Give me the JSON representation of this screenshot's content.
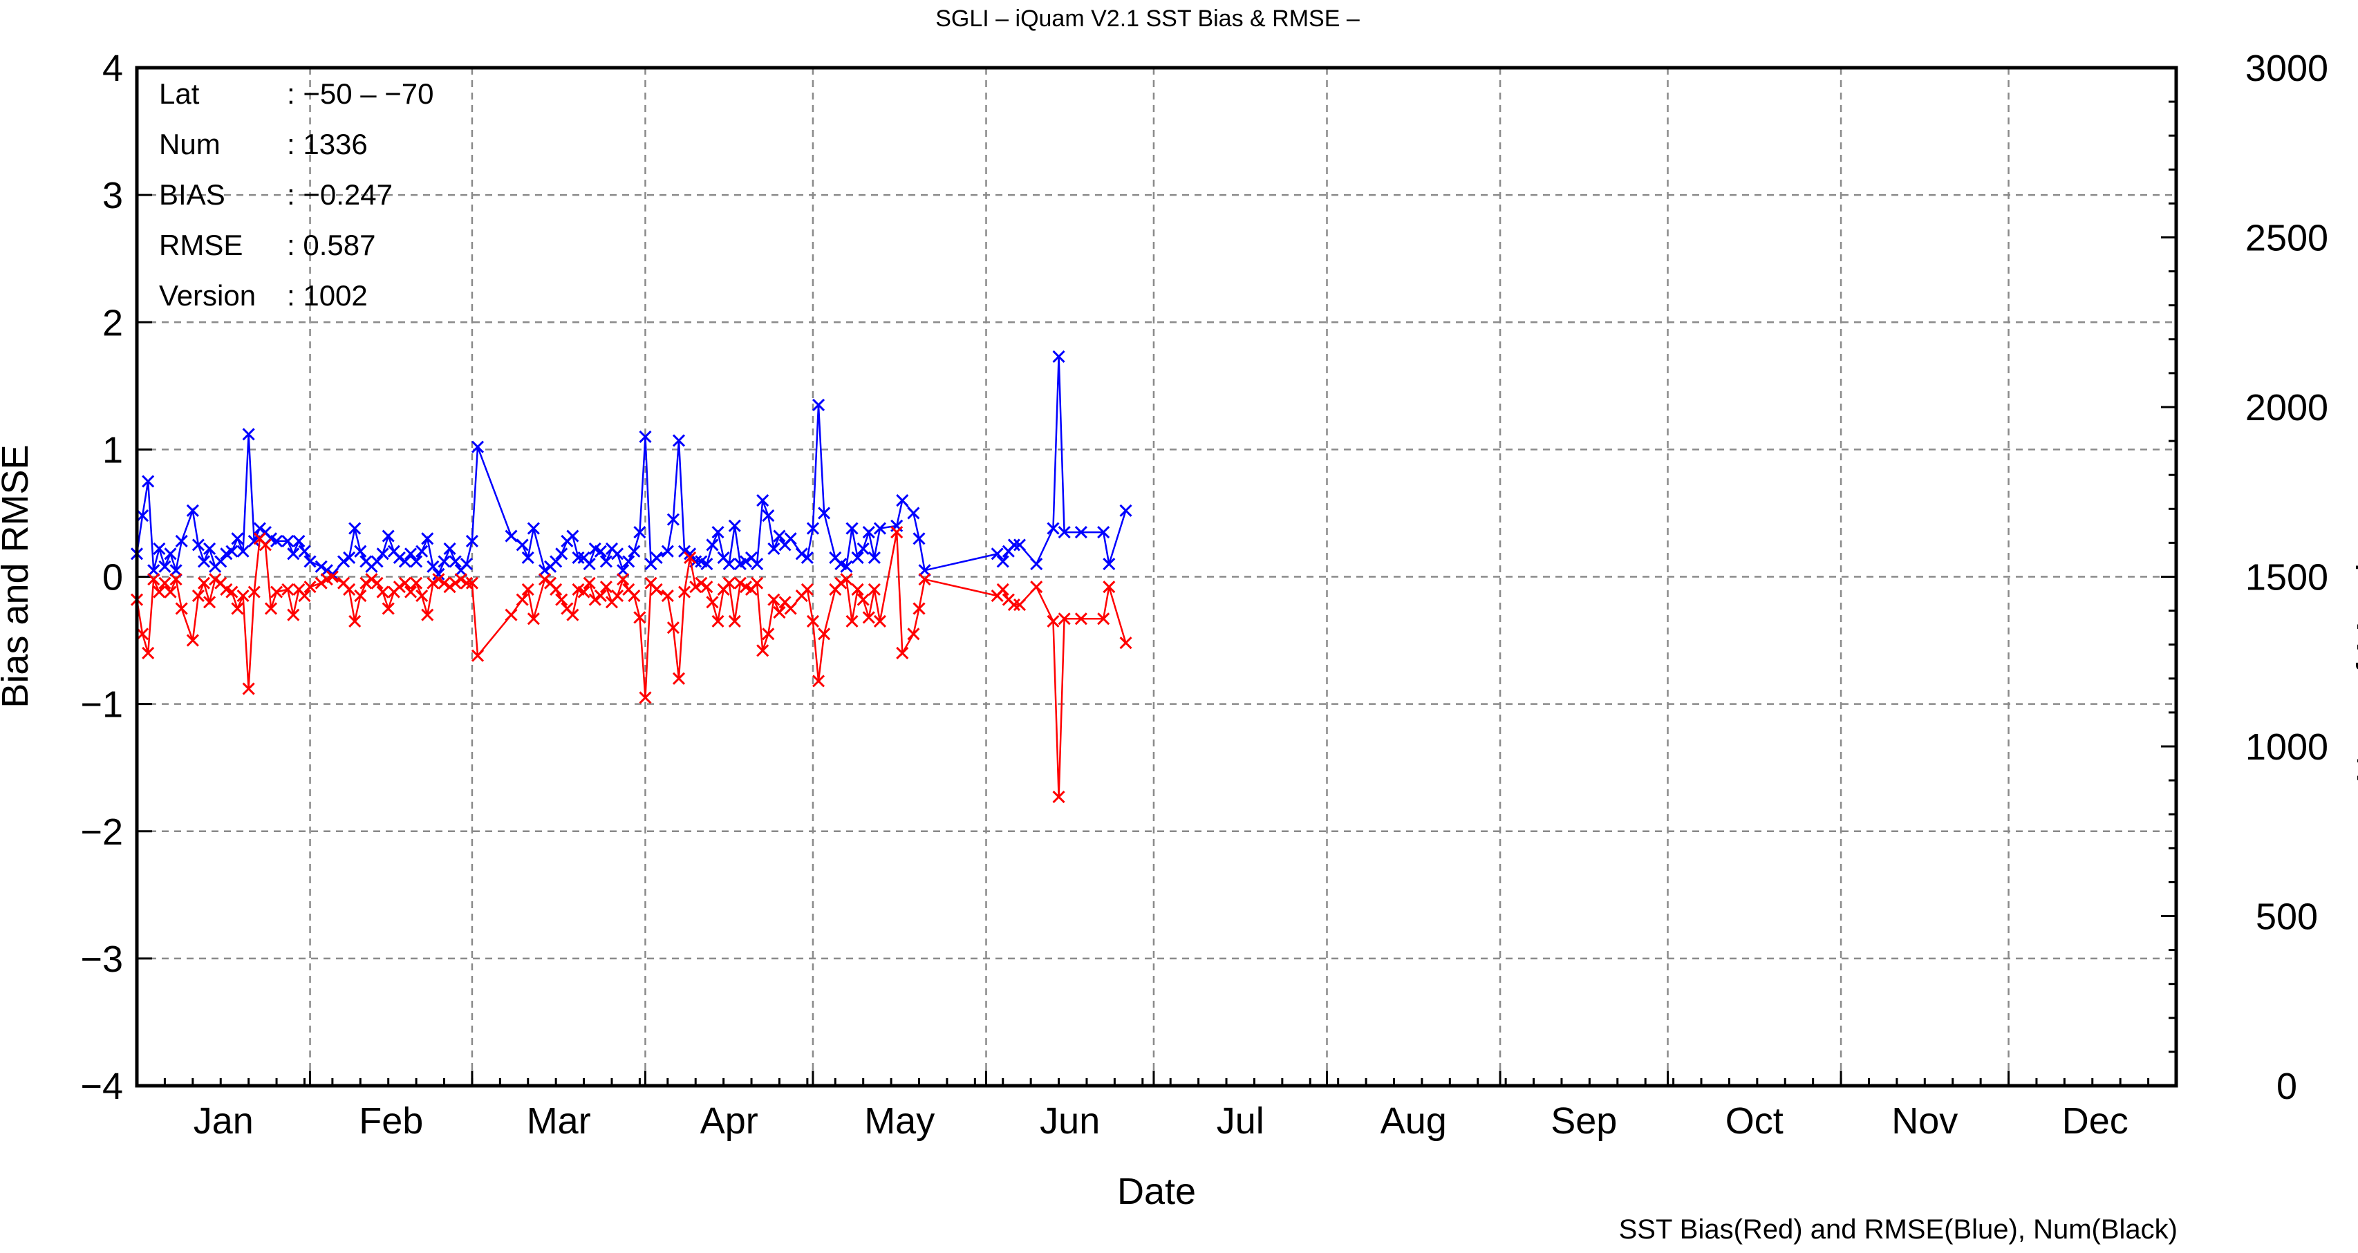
{
  "chart_data": {
    "type": "line",
    "title": "SGLI – iQuam V2.1 SST Bias & RMSE  –",
    "xlabel": "Date",
    "ylabel": "Bias and RMSE",
    "y2label": "Num of Match–up",
    "footer": "SST Bias(Red) and RMSE(Blue), Num(Black)",
    "ylim": [
      -4,
      4
    ],
    "y2lim": [
      0,
      3000
    ],
    "xlim": [
      1,
      366
    ],
    "grid": true,
    "y_ticks": [
      "4",
      "3",
      "2",
      "1",
      "0",
      "−1",
      "−2",
      "−3",
      "−4"
    ],
    "y2_ticks": [
      "3000",
      "2500",
      "2000",
      "1500",
      "1000",
      "500",
      "0"
    ],
    "months": [
      "Jan",
      "Feb",
      "Mar",
      "Apr",
      "May",
      "Jun",
      "Jul",
      "Aug",
      "Sep",
      "Oct",
      "Nov",
      "Dec"
    ],
    "info": [
      {
        "label": "Lat",
        "value": ": −50 – −70"
      },
      {
        "label": "Num",
        "value": ": 1336"
      },
      {
        "label": "BIAS",
        "value": ": −0.247"
      },
      {
        "label": "RMSE",
        "value": ": 0.587"
      },
      {
        "label": "Version",
        "value": ": 1002"
      }
    ],
    "colors": {
      "bias": "#ff0000",
      "rmse": "#0000ff",
      "num": "#000000"
    },
    "series": [
      {
        "name": "RMSE",
        "color": "#0000ff",
        "points": [
          [
            1,
            0.18
          ],
          [
            2,
            0.48
          ],
          [
            3,
            0.75
          ],
          [
            4,
            0.05
          ],
          [
            5,
            0.22
          ],
          [
            6,
            0.08
          ],
          [
            7,
            0.18
          ],
          [
            8,
            0.05
          ],
          [
            9,
            0.28
          ],
          [
            11,
            0.52
          ],
          [
            12,
            0.25
          ],
          [
            13,
            0.12
          ],
          [
            14,
            0.22
          ],
          [
            15,
            0.08
          ],
          [
            16,
            0.12
          ],
          [
            17,
            0.18
          ],
          [
            18,
            0.2
          ],
          [
            19,
            0.3
          ],
          [
            20,
            0.2
          ],
          [
            21,
            1.12
          ],
          [
            22,
            0.28
          ],
          [
            23,
            0.38
          ],
          [
            24,
            0.35
          ],
          [
            25,
            0.3
          ],
          [
            26,
            0.28
          ],
          [
            28,
            0.28
          ],
          [
            29,
            0.18
          ],
          [
            30,
            0.28
          ],
          [
            31,
            0.2
          ],
          [
            32,
            0.12
          ],
          [
            34,
            0.08
          ],
          [
            35,
            0.05
          ],
          [
            36,
            0.02
          ],
          [
            38,
            0.12
          ],
          [
            39,
            0.15
          ],
          [
            40,
            0.38
          ],
          [
            41,
            0.2
          ],
          [
            42,
            0.12
          ],
          [
            43,
            0.08
          ],
          [
            44,
            0.12
          ],
          [
            45,
            0.18
          ],
          [
            46,
            0.32
          ],
          [
            47,
            0.2
          ],
          [
            48,
            0.15
          ],
          [
            49,
            0.12
          ],
          [
            50,
            0.18
          ],
          [
            51,
            0.12
          ],
          [
            52,
            0.2
          ],
          [
            53,
            0.3
          ],
          [
            54,
            0.08
          ],
          [
            55,
            0.02
          ],
          [
            56,
            0.12
          ],
          [
            57,
            0.22
          ],
          [
            58,
            0.12
          ],
          [
            59,
            0.05
          ],
          [
            60,
            0.1
          ],
          [
            61,
            0.28
          ],
          [
            62,
            1.02
          ],
          [
            68,
            0.32
          ],
          [
            70,
            0.25
          ],
          [
            71,
            0.15
          ],
          [
            72,
            0.38
          ],
          [
            74,
            0.05
          ],
          [
            75,
            0.08
          ],
          [
            76,
            0.12
          ],
          [
            77,
            0.18
          ],
          [
            78,
            0.28
          ],
          [
            79,
            0.32
          ],
          [
            80,
            0.15
          ],
          [
            81,
            0.15
          ],
          [
            82,
            0.1
          ],
          [
            83,
            0.22
          ],
          [
            84,
            0.2
          ],
          [
            85,
            0.12
          ],
          [
            86,
            0.22
          ],
          [
            87,
            0.18
          ],
          [
            88,
            0.05
          ],
          [
            89,
            0.12
          ],
          [
            90,
            0.2
          ],
          [
            91,
            0.35
          ],
          [
            92,
            1.1
          ],
          [
            93,
            0.1
          ],
          [
            94,
            0.15
          ],
          [
            96,
            0.2
          ],
          [
            97,
            0.45
          ],
          [
            98,
            1.07
          ],
          [
            99,
            0.2
          ],
          [
            100,
            0.18
          ],
          [
            101,
            0.12
          ],
          [
            102,
            0.12
          ],
          [
            103,
            0.1
          ],
          [
            104,
            0.25
          ],
          [
            105,
            0.35
          ],
          [
            106,
            0.15
          ],
          [
            107,
            0.1
          ],
          [
            108,
            0.4
          ],
          [
            109,
            0.1
          ],
          [
            110,
            0.12
          ],
          [
            111,
            0.15
          ],
          [
            112,
            0.1
          ],
          [
            113,
            0.6
          ],
          [
            114,
            0.48
          ],
          [
            115,
            0.22
          ],
          [
            116,
            0.32
          ],
          [
            117,
            0.25
          ],
          [
            118,
            0.3
          ],
          [
            120,
            0.18
          ],
          [
            121,
            0.15
          ],
          [
            122,
            0.38
          ],
          [
            123,
            1.35
          ],
          [
            124,
            0.5
          ],
          [
            126,
            0.15
          ],
          [
            127,
            0.1
          ],
          [
            128,
            0.08
          ],
          [
            129,
            0.38
          ],
          [
            130,
            0.15
          ],
          [
            131,
            0.22
          ],
          [
            132,
            0.35
          ],
          [
            133,
            0.15
          ],
          [
            134,
            0.38
          ],
          [
            137,
            0.4
          ],
          [
            138,
            0.6
          ],
          [
            140,
            0.5
          ],
          [
            141,
            0.3
          ],
          [
            142,
            0.05
          ],
          [
            155,
            0.18
          ],
          [
            156,
            0.12
          ],
          [
            157,
            0.2
          ],
          [
            158,
            0.25
          ],
          [
            159,
            0.25
          ],
          [
            162,
            0.1
          ],
          [
            165,
            0.38
          ],
          [
            166,
            1.73
          ],
          [
            167,
            0.35
          ],
          [
            170,
            0.35
          ],
          [
            174,
            0.35
          ],
          [
            175,
            0.1
          ],
          [
            178,
            0.52
          ]
        ]
      },
      {
        "name": "Bias",
        "color": "#ff0000",
        "points": [
          [
            1,
            -0.18
          ],
          [
            2,
            -0.45
          ],
          [
            3,
            -0.6
          ],
          [
            4,
            -0.02
          ],
          [
            5,
            -0.12
          ],
          [
            6,
            -0.05
          ],
          [
            7,
            -0.12
          ],
          [
            8,
            -0.02
          ],
          [
            9,
            -0.25
          ],
          [
            11,
            -0.5
          ],
          [
            12,
            -0.15
          ],
          [
            13,
            -0.05
          ],
          [
            14,
            -0.2
          ],
          [
            15,
            -0.02
          ],
          [
            16,
            -0.05
          ],
          [
            17,
            -0.1
          ],
          [
            18,
            -0.12
          ],
          [
            19,
            -0.25
          ],
          [
            20,
            -0.15
          ],
          [
            21,
            -0.88
          ],
          [
            22,
            -0.12
          ],
          [
            23,
            0.3
          ],
          [
            24,
            0.25
          ],
          [
            25,
            -0.25
          ],
          [
            26,
            -0.12
          ],
          [
            28,
            -0.1
          ],
          [
            29,
            -0.3
          ],
          [
            30,
            -0.1
          ],
          [
            31,
            -0.15
          ],
          [
            32,
            -0.08
          ],
          [
            34,
            -0.05
          ],
          [
            35,
            -0.02
          ],
          [
            36,
            0.0
          ],
          [
            38,
            -0.05
          ],
          [
            39,
            -0.1
          ],
          [
            40,
            -0.35
          ],
          [
            41,
            -0.15
          ],
          [
            42,
            -0.05
          ],
          [
            43,
            -0.02
          ],
          [
            44,
            -0.05
          ],
          [
            45,
            -0.12
          ],
          [
            46,
            -0.25
          ],
          [
            47,
            -0.12
          ],
          [
            48,
            -0.08
          ],
          [
            49,
            -0.05
          ],
          [
            50,
            -0.12
          ],
          [
            51,
            -0.05
          ],
          [
            52,
            -0.15
          ],
          [
            53,
            -0.3
          ],
          [
            54,
            -0.05
          ],
          [
            55,
            -0.02
          ],
          [
            56,
            -0.05
          ],
          [
            57,
            -0.08
          ],
          [
            58,
            -0.05
          ],
          [
            59,
            -0.02
          ],
          [
            60,
            -0.05
          ],
          [
            61,
            -0.05
          ],
          [
            62,
            -0.62
          ],
          [
            68,
            -0.3
          ],
          [
            70,
            -0.18
          ],
          [
            71,
            -0.1
          ],
          [
            72,
            -0.33
          ],
          [
            74,
            -0.02
          ],
          [
            75,
            -0.05
          ],
          [
            76,
            -0.1
          ],
          [
            77,
            -0.18
          ],
          [
            78,
            -0.25
          ],
          [
            79,
            -0.3
          ],
          [
            80,
            -0.1
          ],
          [
            81,
            -0.12
          ],
          [
            82,
            -0.05
          ],
          [
            83,
            -0.18
          ],
          [
            84,
            -0.15
          ],
          [
            85,
            -0.08
          ],
          [
            86,
            -0.2
          ],
          [
            87,
            -0.15
          ],
          [
            88,
            -0.02
          ],
          [
            89,
            -0.1
          ],
          [
            90,
            -0.15
          ],
          [
            91,
            -0.32
          ],
          [
            92,
            -0.95
          ],
          [
            93,
            -0.05
          ],
          [
            94,
            -0.1
          ],
          [
            96,
            -0.15
          ],
          [
            97,
            -0.4
          ],
          [
            98,
            -0.8
          ],
          [
            99,
            -0.12
          ],
          [
            100,
            0.15
          ],
          [
            101,
            -0.08
          ],
          [
            102,
            -0.05
          ],
          [
            103,
            -0.08
          ],
          [
            104,
            -0.2
          ],
          [
            105,
            -0.35
          ],
          [
            106,
            -0.1
          ],
          [
            107,
            -0.05
          ],
          [
            108,
            -0.35
          ],
          [
            109,
            -0.05
          ],
          [
            110,
            -0.08
          ],
          [
            111,
            -0.1
          ],
          [
            112,
            -0.05
          ],
          [
            113,
            -0.58
          ],
          [
            114,
            -0.45
          ],
          [
            115,
            -0.18
          ],
          [
            116,
            -0.28
          ],
          [
            117,
            -0.2
          ],
          [
            118,
            -0.25
          ],
          [
            120,
            -0.15
          ],
          [
            121,
            -0.1
          ],
          [
            122,
            -0.35
          ],
          [
            123,
            -0.82
          ],
          [
            124,
            -0.45
          ],
          [
            126,
            -0.1
          ],
          [
            127,
            -0.05
          ],
          [
            128,
            -0.02
          ],
          [
            129,
            -0.35
          ],
          [
            130,
            -0.1
          ],
          [
            131,
            -0.18
          ],
          [
            132,
            -0.32
          ],
          [
            133,
            -0.1
          ],
          [
            134,
            -0.35
          ],
          [
            137,
            0.35
          ],
          [
            138,
            -0.6
          ],
          [
            140,
            -0.45
          ],
          [
            141,
            -0.25
          ],
          [
            142,
            -0.02
          ],
          [
            155,
            -0.15
          ],
          [
            156,
            -0.1
          ],
          [
            157,
            -0.18
          ],
          [
            158,
            -0.22
          ],
          [
            159,
            -0.22
          ],
          [
            162,
            -0.08
          ],
          [
            165,
            -0.35
          ],
          [
            166,
            -1.73
          ],
          [
            167,
            -0.33
          ],
          [
            170,
            -0.33
          ],
          [
            174,
            -0.33
          ],
          [
            175,
            -0.08
          ],
          [
            178,
            -0.52
          ]
        ]
      }
    ]
  }
}
